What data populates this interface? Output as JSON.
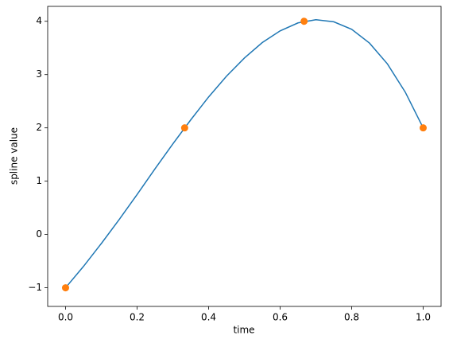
{
  "chart_data": {
    "type": "line",
    "xlabel": "time",
    "ylabel": "spline value",
    "xlim": [
      -0.05,
      1.05
    ],
    "ylim": [
      -1.35,
      4.28
    ],
    "xticks": [
      {
        "value": 0,
        "label": "0.0"
      },
      {
        "value": 0.2,
        "label": "0.2"
      },
      {
        "value": 0.4,
        "label": "0.4"
      },
      {
        "value": 0.6,
        "label": "0.6"
      },
      {
        "value": 0.8,
        "label": "0.8"
      },
      {
        "value": 1,
        "label": "1.0"
      }
    ],
    "yticks": [
      {
        "value": -1,
        "label": "−1"
      },
      0,
      1,
      2,
      3,
      4
    ],
    "series": [
      {
        "style": "line",
        "color": "#1f77b4",
        "x": [
          0,
          0.05,
          0.1,
          0.15,
          0.2,
          0.25,
          0.3,
          0.35,
          0.4,
          0.45,
          0.5,
          0.55,
          0.6,
          0.65,
          0.7,
          0.75,
          0.8,
          0.85,
          0.9,
          0.95,
          1
        ],
        "values": [
          -1,
          -0.6,
          -0.17,
          0.28,
          0.75,
          1.23,
          1.7,
          2.15,
          2.58,
          2.97,
          3.31,
          3.6,
          3.82,
          3.97,
          4.03,
          3.99,
          3.85,
          3.59,
          3.2,
          2.67,
          2
        ]
      },
      {
        "style": "markers",
        "color": "#ff7f0e",
        "x": [
          0,
          0.333,
          0.667,
          1
        ],
        "values": [
          -1,
          2,
          4,
          2
        ]
      }
    ]
  }
}
